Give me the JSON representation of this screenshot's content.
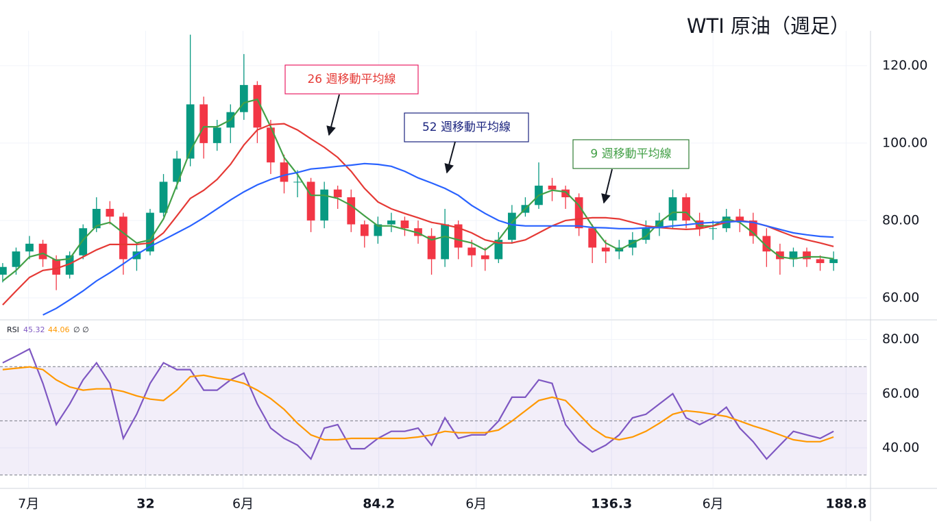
{
  "chart_data": [
    {
      "type": "candlestick",
      "title": "WTI 原油（週足）",
      "x": [
        0,
        3,
        6,
        9,
        12,
        15,
        18,
        21,
        24,
        27,
        30,
        33,
        36,
        39,
        42,
        45,
        48,
        51,
        54,
        57,
        60,
        63,
        66,
        69,
        72,
        75,
        78,
        81,
        84,
        87,
        90,
        93,
        96,
        99,
        102,
        105,
        108,
        111,
        114,
        117,
        120,
        123,
        126,
        129,
        132,
        135,
        138,
        141,
        144,
        147,
        150,
        153,
        156,
        159,
        162,
        165,
        168,
        171,
        174,
        177,
        180,
        183,
        186
      ],
      "xlim": [
        -0.6,
        193.5
      ],
      "xticks": [
        {
          "value": 5.8,
          "label": "7月"
        },
        32,
        {
          "value": 53.8,
          "label": "6月"
        },
        84.2,
        {
          "value": 106,
          "label": "6月"
        },
        136.3,
        {
          "value": 159,
          "label": "6月"
        },
        188.8
      ],
      "open": [
        66,
        68,
        72,
        74,
        70,
        66,
        71,
        78,
        83,
        81,
        70,
        72,
        82,
        90,
        96,
        110,
        100,
        104,
        108,
        115,
        104,
        95,
        90,
        90,
        80,
        88,
        86,
        79,
        76,
        79,
        80,
        78,
        76,
        70,
        79,
        73,
        71,
        70,
        75,
        82,
        84,
        89,
        88,
        86,
        78,
        73,
        72,
        73,
        75,
        78,
        80,
        86,
        80,
        78,
        78,
        81,
        80,
        76,
        72,
        70,
        72,
        70,
        69
      ],
      "high": [
        69,
        73,
        76,
        75,
        71,
        72,
        79,
        86,
        85,
        82,
        74,
        83,
        92,
        98,
        128,
        112,
        106,
        110,
        123,
        116,
        106,
        97,
        93,
        91,
        90,
        89,
        88,
        80,
        81,
        82,
        81,
        80,
        78,
        83,
        80,
        75,
        73,
        77,
        84,
        86,
        95,
        91,
        89,
        87,
        79,
        75,
        75,
        77,
        80,
        82,
        88,
        87,
        82,
        80,
        83,
        83,
        82,
        78,
        74,
        73,
        73,
        71,
        72
      ],
      "low": [
        64,
        66,
        70,
        68,
        62,
        65,
        70,
        77,
        79,
        66,
        67,
        71,
        81,
        88,
        94,
        96,
        98,
        100,
        106,
        100,
        92,
        87,
        86,
        77,
        78,
        83,
        77,
        73,
        74,
        77,
        76,
        74,
        66,
        68,
        70,
        68,
        67,
        69,
        74,
        81,
        83,
        85,
        83,
        76,
        69,
        69,
        70,
        71,
        74,
        76,
        78,
        78,
        76,
        75,
        77,
        77,
        74,
        68,
        66,
        68,
        68,
        67,
        67
      ],
      "close": [
        68,
        72,
        74,
        70,
        66,
        71,
        78,
        83,
        81,
        70,
        72,
        82,
        90,
        96,
        110,
        100,
        104,
        108,
        115,
        104,
        95,
        90,
        90,
        80,
        88,
        86,
        79,
        76,
        79,
        80,
        78,
        76,
        70,
        79,
        73,
        71,
        70,
        75,
        82,
        84,
        89,
        88,
        86,
        78,
        73,
        72,
        73,
        75,
        78,
        80,
        86,
        80,
        78,
        78,
        81,
        80,
        76,
        72,
        70,
        72,
        70,
        69,
        70
      ],
      "up_color": "#089981",
      "down_color": "#f23645",
      "series": [
        {
          "name": "9 週移動平均線",
          "color": "#43a047",
          "values": [
            64.4,
            67.1,
            70.6,
            71.5,
            69.7,
            70.1,
            75,
            78.6,
            79.5,
            76.8,
            74.2,
            75,
            80.4,
            89.2,
            98,
            104.2,
            104.2,
            106,
            110.4,
            111.3,
            104.2,
            96.3,
            91.9,
            86.5,
            86.5,
            85.7,
            83.9,
            81.2,
            78.6,
            78.6,
            77.7,
            76.8,
            75,
            75.9,
            75,
            74.2,
            72.4,
            75,
            79.5,
            83,
            86.5,
            87.8,
            87.4,
            83.9,
            78.6,
            74.2,
            72.4,
            74.2,
            75.9,
            79.5,
            82.1,
            82.1,
            78.6,
            78.6,
            80.4,
            79.5,
            76.8,
            73.3,
            70.6,
            70.1,
            70.6,
            70.6,
            70.1
          ]
        },
        {
          "name": "26 週移動平均線",
          "color": "#e53935",
          "values": [
            58.2,
            61.8,
            65.3,
            67.1,
            67.6,
            68.8,
            70.6,
            72.4,
            73.8,
            73.8,
            73.8,
            74.2,
            76.8,
            81.2,
            85.7,
            87.8,
            90.6,
            94.5,
            99.5,
            103.4,
            104.8,
            105,
            103.4,
            101.1,
            98.9,
            96.3,
            92.7,
            88.3,
            84.8,
            83,
            81.8,
            80.7,
            79.5,
            78.9,
            78.1,
            76.8,
            75,
            74.2,
            74.2,
            75,
            76.8,
            78.6,
            80,
            80.4,
            80.7,
            80.7,
            80.4,
            79.5,
            78.6,
            78.2,
            77.9,
            77.7,
            77.9,
            78.6,
            79.5,
            80,
            79.5,
            78.6,
            77.2,
            75.9,
            75,
            74.2,
            73.3
          ]
        },
        {
          "name": "52 週移動平均線",
          "color": "#2962ff",
          "values": [
            null,
            null,
            null,
            55.6,
            57.3,
            59.5,
            61.8,
            64.4,
            66.5,
            68.8,
            71.2,
            73.3,
            75,
            76.8,
            78.6,
            80.7,
            83,
            85.3,
            87.4,
            89.2,
            90.6,
            91.7,
            92.4,
            93.3,
            93.6,
            94,
            94.3,
            94.7,
            94.5,
            94,
            92.7,
            91,
            89.7,
            88.3,
            86.5,
            83.9,
            81.8,
            80,
            78.9,
            78.6,
            78.6,
            78.6,
            78.6,
            78.6,
            78.2,
            78.1,
            77.9,
            77.9,
            78.1,
            78.2,
            78.6,
            78.9,
            79.3,
            79.5,
            79.6,
            79.8,
            79.5,
            78.6,
            77.7,
            76.8,
            76.3,
            75.9,
            75.7
          ]
        }
      ],
      "ylim": [
        54.5,
        129
      ],
      "yticks": [
        {
          "value": 60,
          "label": "60.00"
        },
        {
          "value": 80,
          "label": "80.00"
        },
        {
          "value": 100,
          "label": "100.00"
        },
        {
          "value": 120,
          "label": "120.00"
        }
      ],
      "grid": true
    },
    {
      "type": "line",
      "title": "RSI",
      "legend_values": [
        "45.32",
        "44.06"
      ],
      "series": [
        {
          "color": "#7e57c2",
          "values": [
            71.4,
            73.9,
            76.5,
            63.8,
            48.6,
            56.2,
            65.1,
            71.4,
            63.8,
            43.5,
            52.4,
            63.8,
            71.4,
            68.9,
            68.9,
            61.3,
            61.3,
            65.1,
            67.6,
            56.2,
            47.3,
            43.5,
            41,
            35.9,
            47.3,
            48.6,
            39.7,
            39.7,
            43.5,
            46.1,
            46.1,
            47.3,
            41,
            51.1,
            43.5,
            44.8,
            44.8,
            49.9,
            58.7,
            58.7,
            65.1,
            63.8,
            48.6,
            42.3,
            38.5,
            41,
            44.8,
            51.1,
            52.4,
            56.2,
            60,
            51.1,
            48.6,
            51.1,
            55,
            47.3,
            42.3,
            35.9,
            41,
            46.1,
            44.8,
            43.5,
            46.1
          ]
        },
        {
          "color": "#ff9800",
          "values": [
            68.9,
            69.4,
            69.9,
            68.9,
            65.1,
            62.5,
            61.3,
            61.8,
            61.8,
            60.8,
            59.2,
            58,
            57.5,
            61.3,
            66.3,
            66.8,
            65.8,
            65.1,
            63.8,
            61.3,
            58.2,
            54.2,
            49.1,
            44.8,
            43,
            43,
            43.5,
            43.5,
            43.5,
            43.5,
            43.5,
            44,
            44.8,
            46.1,
            45.6,
            45.6,
            45.6,
            46.6,
            49.9,
            53.7,
            57.5,
            58.7,
            57.5,
            52.4,
            47.3,
            44,
            43,
            44,
            46.1,
            49.1,
            52.4,
            53.7,
            53.2,
            52.4,
            51.6,
            49.9,
            48.1,
            46.6,
            44.8,
            43,
            42.3,
            42.3,
            44
          ]
        }
      ],
      "bands": [
        70,
        50,
        30
      ],
      "band_color": "#7e57c2",
      "ylim": [
        25.3,
        87
      ],
      "yticks": [
        {
          "value": 40,
          "label": "40.00"
        },
        {
          "value": 60,
          "label": "60.00"
        },
        {
          "value": 80,
          "label": "80.00"
        }
      ],
      "grid": true
    }
  ]
}
